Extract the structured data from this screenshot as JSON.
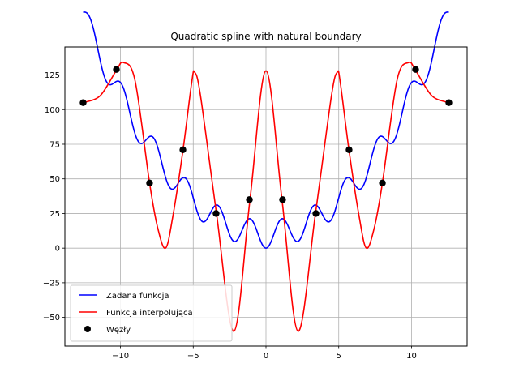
{
  "chart_data": {
    "type": "line",
    "title": "Quadratic spline with natural boundary",
    "xlabel": "",
    "ylabel": "",
    "xlim": [
      -13.82,
      13.82
    ],
    "ylim": [
      -70.7,
      145.2
    ],
    "xticks": [
      -10,
      -5,
      0,
      5,
      10
    ],
    "xtick_labels": [
      "−10",
      "−5",
      "0",
      "5",
      "10"
    ],
    "yticks": [
      -50,
      -25,
      0,
      25,
      50,
      75,
      100,
      125
    ],
    "ytick_labels": [
      "−50",
      "−25",
      "0",
      "25",
      "50",
      "75",
      "100",
      "125"
    ],
    "grid": true,
    "legend_position": "lower-left",
    "series": [
      {
        "name": "Zadana funkcja",
        "style": "line",
        "color": "#0000ff",
        "expression": "x^2 - 10*cos(2*pi*x/2.2) + 10 (approximate)"
      },
      {
        "name": "Funkcja interpolująca",
        "style": "line",
        "color": "#ff0000",
        "x": [
          -12.566,
          -11.4,
          -10.3,
          -9.8,
          -9.0,
          -8.0,
          -7.45,
          -6.9,
          -6.4,
          -5.7,
          -5.1,
          -4.9,
          -4.5,
          -3.4,
          -2.2,
          -1.1,
          0.0,
          1.1,
          2.2,
          3.4,
          4.5,
          4.9,
          5.1,
          5.7,
          6.4,
          6.9,
          7.45,
          8.0,
          9.0,
          9.8,
          10.3,
          11.4,
          12.566
        ],
        "y": [
          105,
          110,
          128,
          134,
          121,
          47,
          15,
          0,
          23,
          71,
          120,
          127,
          110,
          25,
          -60,
          35,
          128,
          35,
          -60,
          25,
          110,
          127,
          120,
          71,
          23,
          0,
          15,
          47,
          121,
          134,
          128,
          110,
          105
        ]
      },
      {
        "name": "Węzły",
        "style": "scatter",
        "color": "#000000",
        "x": [
          -12.566,
          -10.28,
          -8.0,
          -5.71,
          -3.43,
          -1.14,
          1.14,
          3.43,
          5.71,
          8.0,
          10.28,
          12.566
        ],
        "y": [
          105,
          129,
          47,
          71,
          25,
          35,
          35,
          25,
          71,
          47,
          129,
          105
        ]
      }
    ]
  }
}
